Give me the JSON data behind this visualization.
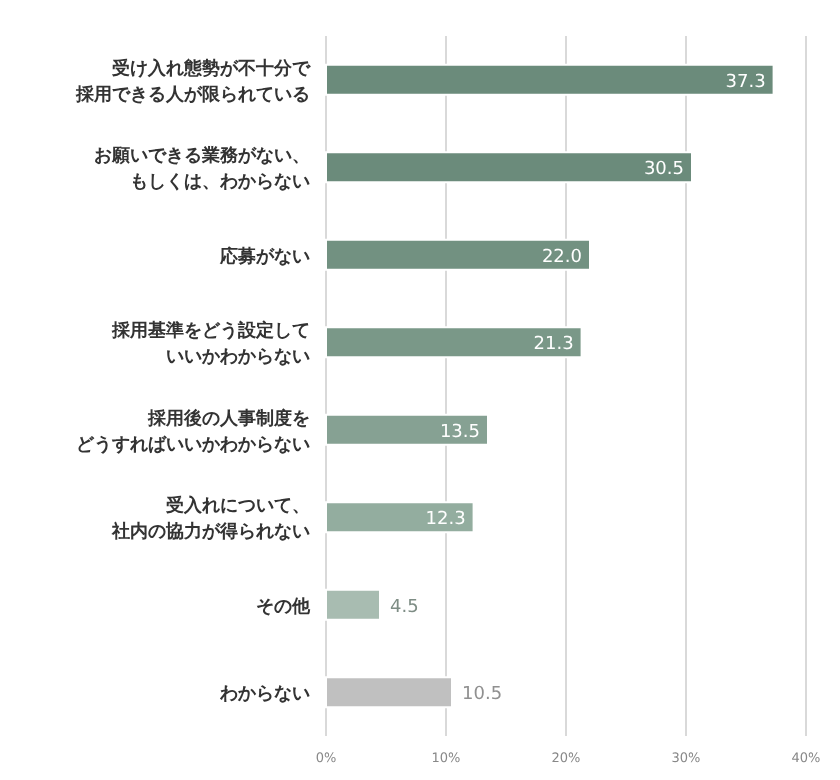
{
  "chart_data": {
    "type": "bar",
    "orientation": "horizontal",
    "categories": [
      "受け入れ態勢が不十分で採用できる人が限られている",
      "お願いできる業務がない、もしくは、わからない",
      "応募がない",
      "採用基準をどう設定していいかわからない",
      "採用後の人事制度をどうすればいいかわからない",
      "受入れについて、社内の協力が得られない",
      "その他",
      "わからない"
    ],
    "values": [
      37.3,
      30.5,
      22.0,
      21.3,
      13.5,
      12.3,
      4.5,
      10.5
    ],
    "value_labels": [
      "37.3",
      "30.5",
      "22.0",
      "21.3",
      "13.5",
      "12.3",
      "4.5",
      "10.5"
    ],
    "colors": [
      "#6b8b7b",
      "#6b8b7b",
      "#729181",
      "#7a9888",
      "#86a193",
      "#93ad9f",
      "#a8bcb1",
      "#c0c0c0"
    ],
    "xlim": [
      0,
      40
    ],
    "xticks": [
      {
        "value": 0,
        "label": "0%"
      },
      {
        "value": 10,
        "label": "10%"
      },
      {
        "value": 20,
        "label": "20%"
      },
      {
        "value": 30,
        "label": "30%"
      },
      {
        "value": 40,
        "label": "40%"
      }
    ],
    "grid": "x"
  }
}
